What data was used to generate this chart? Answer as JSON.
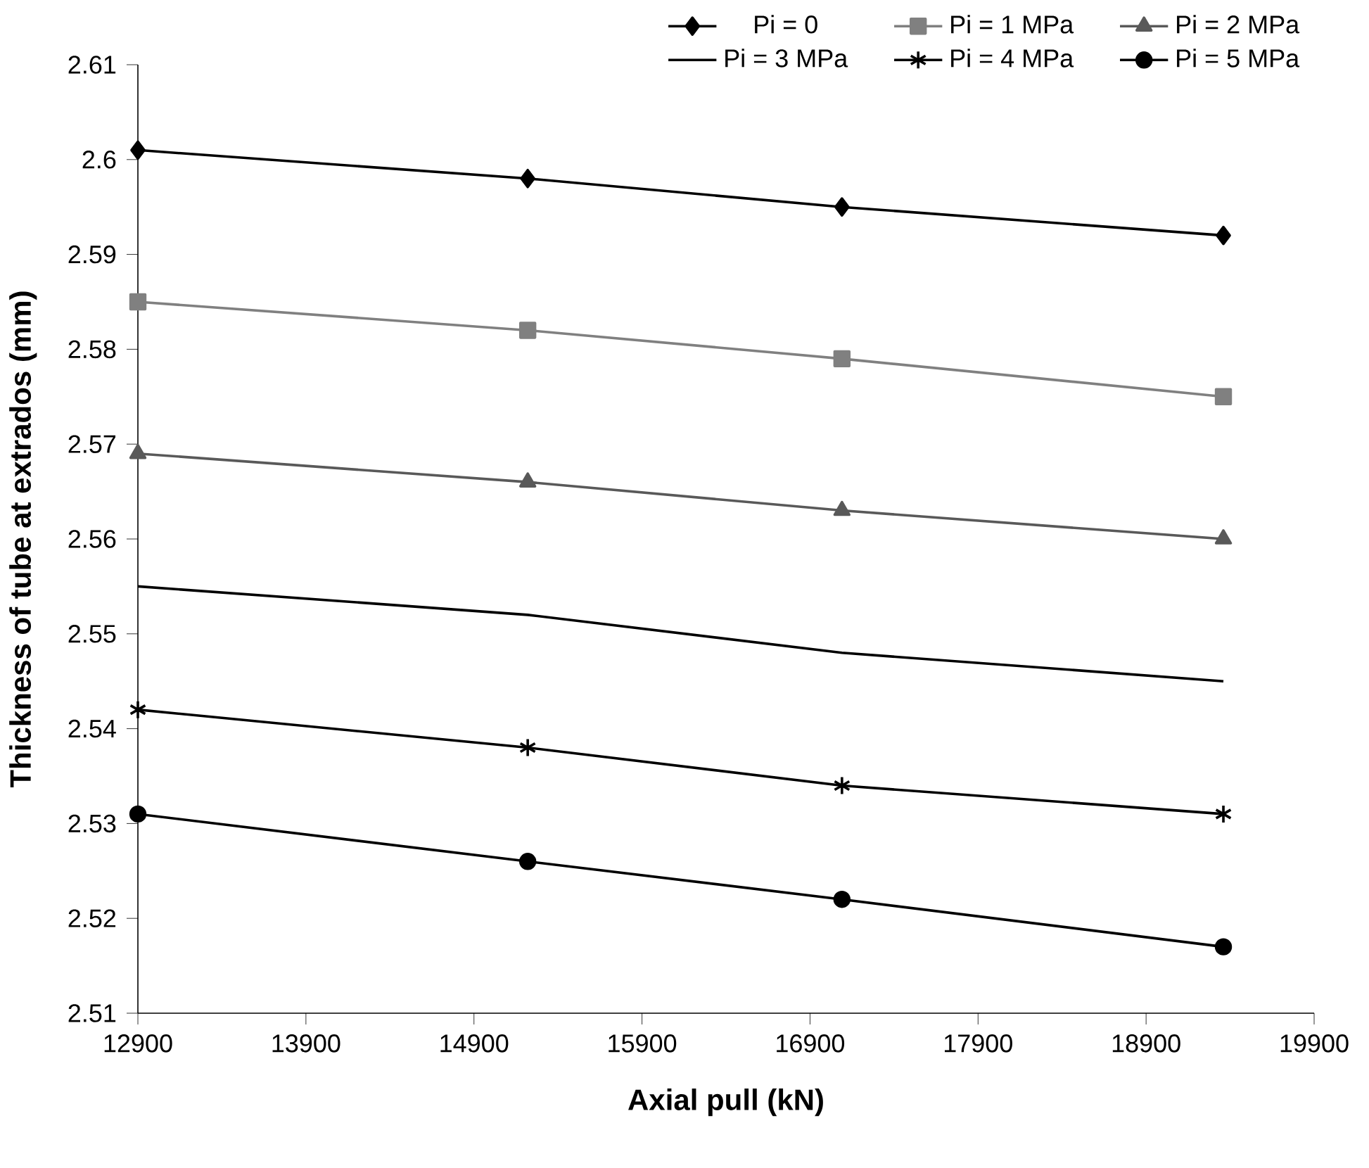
{
  "chart_data": {
    "type": "line",
    "xlabel": "Axial pull (kN)",
    "ylabel": "Thickness of tube at extrados (mm)",
    "xlim": [
      12900,
      19900
    ],
    "xticks": [
      12900,
      13900,
      14900,
      15900,
      16900,
      17900,
      18900,
      19900
    ],
    "ylim": [
      2.51,
      2.61
    ],
    "yticks": [
      2.51,
      2.52,
      2.53,
      2.54,
      2.55,
      2.56,
      2.57,
      2.58,
      2.59,
      2.6,
      2.61
    ],
    "grid": false,
    "legend": "top right",
    "line_style": "solid",
    "x": [
      12900,
      15220,
      17090,
      19360
    ],
    "series": [
      {
        "name": "Pi = 0",
        "color": "#000000",
        "marker": "diamond",
        "values": [
          2.601,
          2.598,
          2.595,
          2.592
        ]
      },
      {
        "name": "Pi = 1 MPa",
        "color": "#808080",
        "marker": "square",
        "values": [
          2.585,
          2.582,
          2.579,
          2.575
        ]
      },
      {
        "name": "Pi = 2 MPa",
        "color": "#595959",
        "marker": "triangle",
        "values": [
          2.569,
          2.566,
          2.563,
          2.56
        ]
      },
      {
        "name": "Pi = 3 MPa",
        "color": "#000000",
        "marker": "none",
        "values": [
          2.555,
          2.552,
          2.548,
          2.545
        ]
      },
      {
        "name": "Pi = 4 MPa",
        "color": "#000000",
        "marker": "cross",
        "values": [
          2.542,
          2.538,
          2.534,
          2.531
        ]
      },
      {
        "name": "Pi = 5 MPa",
        "color": "#000000",
        "marker": "circle",
        "values": [
          2.531,
          2.526,
          2.522,
          2.517
        ]
      }
    ]
  }
}
